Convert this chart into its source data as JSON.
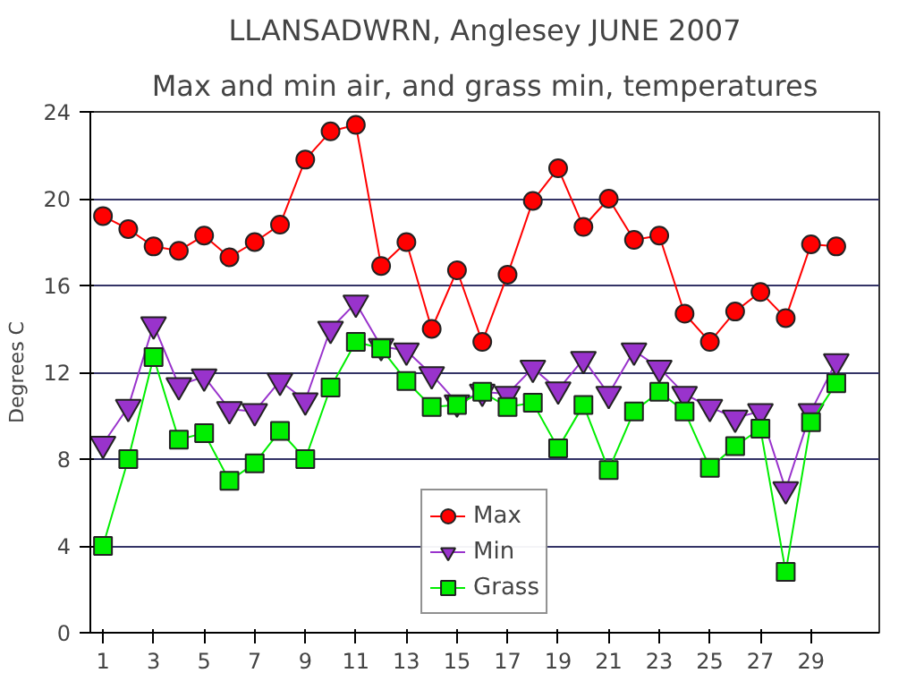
{
  "chart_data": {
    "type": "line",
    "title": "LLANSADWRN, Anglesey JUNE 2007",
    "subtitle": "Max and min air, and grass min, temperatures",
    "ylabel": "Degrees C",
    "x": [
      1,
      2,
      3,
      4,
      5,
      6,
      7,
      8,
      9,
      10,
      11,
      12,
      13,
      14,
      15,
      16,
      17,
      18,
      19,
      20,
      21,
      22,
      23,
      24,
      25,
      26,
      27,
      28,
      29,
      30
    ],
    "xlim": [
      0.5,
      31.7
    ],
    "xticks": [
      1,
      3,
      5,
      7,
      9,
      11,
      13,
      15,
      17,
      19,
      21,
      23,
      25,
      27,
      29
    ],
    "ylim": [
      0,
      24
    ],
    "yticks": [
      0,
      4,
      8,
      12,
      16,
      20,
      24
    ],
    "grid": "y",
    "legend": "bottom",
    "series": [
      {
        "name": "Max",
        "color": "#ff0000",
        "marker": "circle",
        "values": [
          19.2,
          18.6,
          17.8,
          17.6,
          18.3,
          17.3,
          18.0,
          18.8,
          21.8,
          23.1,
          23.4,
          16.9,
          18.0,
          14.0,
          16.7,
          13.4,
          16.5,
          19.9,
          21.4,
          18.7,
          20.0,
          18.1,
          18.3,
          14.7,
          13.4,
          14.8,
          15.7,
          14.5,
          17.9,
          17.8
        ]
      },
      {
        "name": "Min",
        "color": "#9933cc",
        "marker": "triangle",
        "values": [
          8.7,
          10.4,
          14.2,
          11.4,
          11.8,
          10.3,
          10.2,
          11.6,
          10.7,
          14.0,
          15.2,
          13.2,
          13.0,
          11.9,
          10.6,
          11.1,
          11.0,
          12.2,
          11.2,
          12.6,
          11.0,
          13.0,
          12.2,
          11.0,
          10.4,
          9.9,
          10.2,
          6.6,
          10.2,
          12.5
        ]
      },
      {
        "name": "Grass",
        "color": "#00ee00",
        "marker": "square",
        "values": [
          4.0,
          8.0,
          12.7,
          8.9,
          9.2,
          7.0,
          7.8,
          9.3,
          8.0,
          11.3,
          13.4,
          13.1,
          11.6,
          10.4,
          10.5,
          11.1,
          10.4,
          10.6,
          8.5,
          10.5,
          7.5,
          10.2,
          11.1,
          10.2,
          7.6,
          8.6,
          9.4,
          2.8,
          9.7,
          11.5
        ]
      }
    ]
  }
}
